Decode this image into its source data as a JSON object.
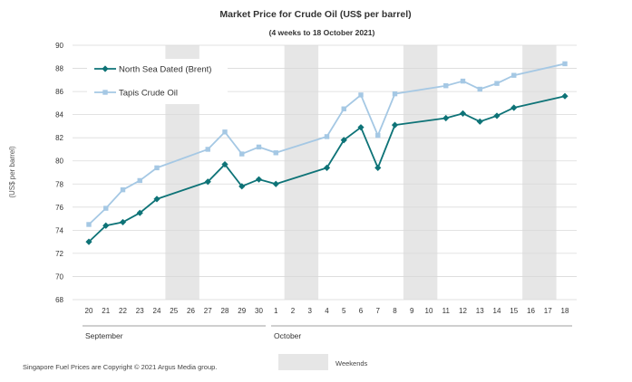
{
  "chart_data": {
    "type": "line",
    "title": "Market Price for Crude Oil  (US$  per barrel)",
    "subtitle": "(4 weeks to 18 October 2021)",
    "ylabel": "(US$ per barrel)",
    "ylim": [
      68,
      90
    ],
    "yticks": [
      68,
      70,
      72,
      74,
      76,
      78,
      80,
      82,
      84,
      86,
      88,
      90
    ],
    "x": [
      "20",
      "21",
      "22",
      "23",
      "24",
      "25",
      "26",
      "27",
      "28",
      "29",
      "30",
      "1",
      "2",
      "3",
      "4",
      "5",
      "6",
      "7",
      "8",
      "9",
      "10",
      "11",
      "12",
      "13",
      "14",
      "15",
      "16",
      "17",
      "18"
    ],
    "months": [
      {
        "label": "September",
        "start": 0,
        "end": 10
      },
      {
        "label": "October",
        "start": 11,
        "end": 28
      }
    ],
    "weekends": [
      [
        5,
        6
      ],
      [
        12,
        13
      ],
      [
        19,
        20
      ],
      [
        26,
        27
      ]
    ],
    "series": [
      {
        "name": "North Sea Dated (Brent)",
        "color": "#0e7377",
        "marker": "diamond",
        "values": [
          73.0,
          74.4,
          74.7,
          75.5,
          76.7,
          null,
          null,
          78.2,
          79.7,
          77.8,
          78.4,
          78.0,
          null,
          null,
          79.4,
          81.8,
          82.9,
          79.4,
          83.1,
          null,
          null,
          83.7,
          84.1,
          83.4,
          83.9,
          84.6,
          null,
          null,
          85.6
        ]
      },
      {
        "name": "Tapis Crude Oil",
        "color": "#a5c8e4",
        "marker": "square",
        "values": [
          74.5,
          75.9,
          77.5,
          78.3,
          79.4,
          null,
          null,
          81.0,
          82.5,
          80.6,
          81.2,
          80.7,
          null,
          null,
          82.1,
          84.5,
          85.7,
          82.2,
          85.8,
          null,
          null,
          86.5,
          86.9,
          86.2,
          86.7,
          87.4,
          null,
          null,
          88.4
        ]
      }
    ],
    "legend_position": "top-left",
    "grid": true
  },
  "footer": {
    "copyright": "Singapore  Fuel Prices are Copyright © 2021  Argus Media group.",
    "weekends_label": "Weekends"
  },
  "colors": {
    "grid": "#d9d9d9",
    "weekend": "#e6e6e6",
    "axis": "#7f7f7f"
  }
}
